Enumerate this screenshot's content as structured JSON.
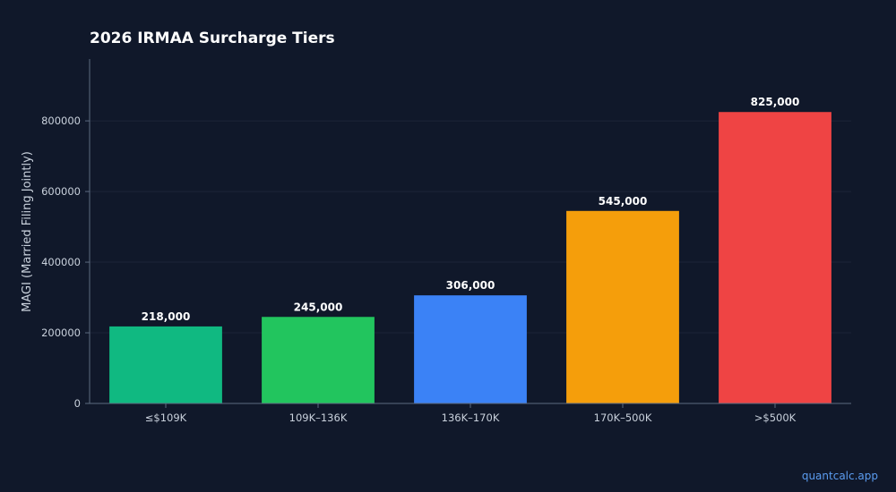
{
  "chart_data": {
    "type": "bar",
    "title": "2026 IRMAA Surcharge Tiers",
    "xlabel": "",
    "ylabel": "MAGI (Married Filing Jointly)",
    "categories": [
      "≤$109K",
      "109K–136K",
      "136K–170K",
      "170K–500K",
      ">$500K"
    ],
    "values": [
      218000,
      245000,
      306000,
      545000,
      825000
    ],
    "value_labels": [
      "218,000",
      "245,000",
      "306,000",
      "545,000",
      "825,000"
    ],
    "colors": [
      "#10b981",
      "#22c55e",
      "#3b82f6",
      "#f59e0b",
      "#ef4444"
    ],
    "yticks": [
      0,
      200000,
      400000,
      600000,
      800000
    ],
    "ytick_labels": [
      "0",
      "200000",
      "400000",
      "600000",
      "800000"
    ],
    "ylim": [
      0,
      975000
    ],
    "grid": true,
    "legend": "none"
  },
  "watermark": "quantcalc.app"
}
